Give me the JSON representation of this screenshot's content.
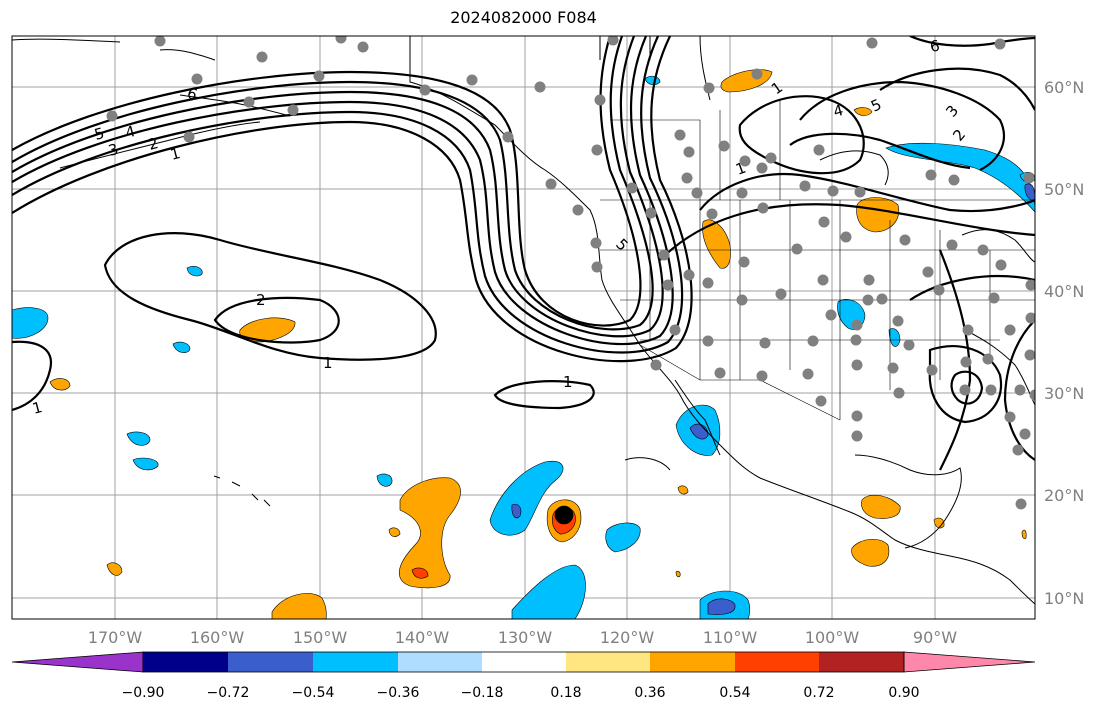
{
  "title": "2024082000 F084",
  "lon_ticks": [
    "170°W",
    "160°W",
    "150°W",
    "140°W",
    "130°W",
    "120°W",
    "110°W",
    "100°W",
    "90°W"
  ],
  "lat_ticks": [
    "60°N",
    "50°N",
    "40°N",
    "30°N",
    "20°N",
    "10°N"
  ],
  "colorbar": {
    "labels": [
      "−0.90",
      "−0.72",
      "−0.54",
      "−0.36",
      "−0.18",
      "0.18",
      "0.36",
      "0.54",
      "0.72",
      "0.90"
    ],
    "colors": [
      "#9933cc",
      "#00008b",
      "#3a5fcd",
      "#00bfff",
      "#aeddff",
      "#ffffff",
      "#ffe680",
      "#ffa500",
      "#ff4000",
      "#b22222",
      "#ff88aa"
    ]
  },
  "contour_labels": [
    "1",
    "2",
    "3",
    "4",
    "5",
    "6",
    "1",
    "2",
    "1",
    "1",
    "1",
    "1",
    "4",
    "5",
    "6",
    "3",
    "2",
    "5"
  ],
  "colors": {
    "orange": "#ffa500",
    "deep_orange": "#ff4000",
    "blue": "#00bfff",
    "light_blue": "#aeddff",
    "royal_blue": "#3a5fcd",
    "purple": "#9933cc",
    "gray_dot": "#808080",
    "grid": "#a0a0a0"
  }
}
